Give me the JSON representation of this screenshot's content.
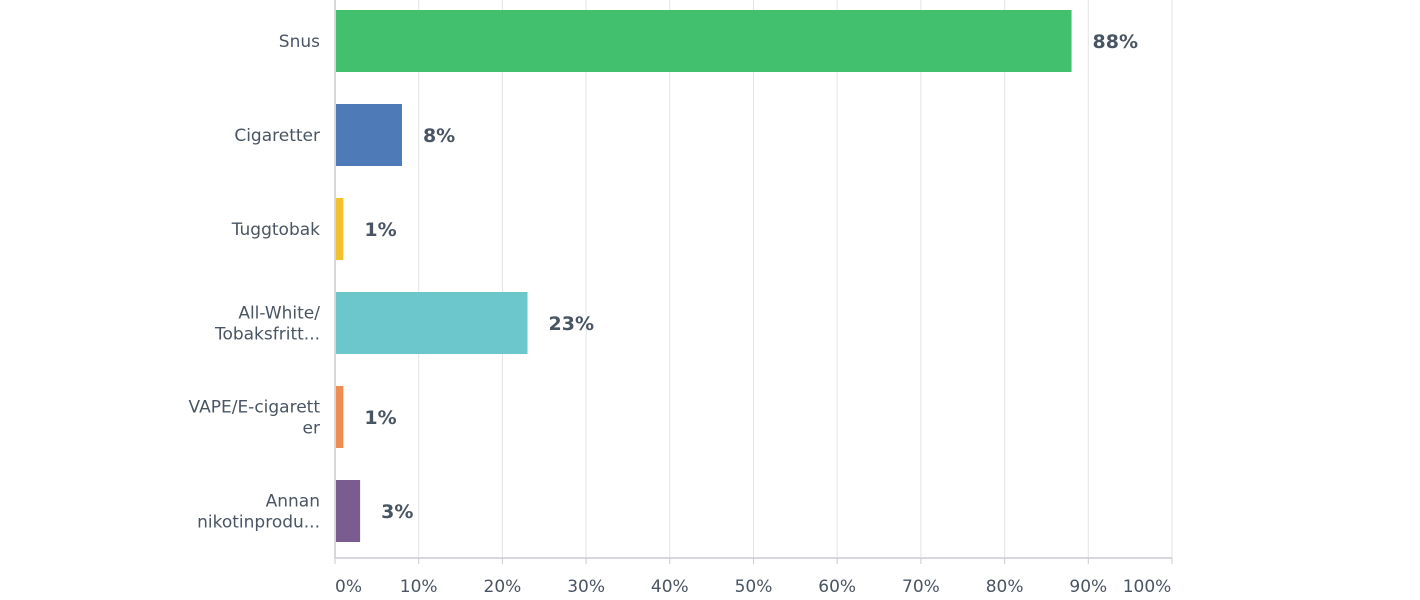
{
  "chart_data": {
    "type": "bar",
    "orientation": "horizontal",
    "categories": [
      {
        "lines": [
          "Snus"
        ]
      },
      {
        "lines": [
          "Cigaretter"
        ]
      },
      {
        "lines": [
          "Tuggtobak"
        ]
      },
      {
        "lines": [
          "All-White/",
          "Tobaksfritt..."
        ]
      },
      {
        "lines": [
          "VAPE/E-cigarett",
          "er"
        ]
      },
      {
        "lines": [
          "Annan",
          "nikotinprodu..."
        ]
      }
    ],
    "values": [
      88,
      8,
      1,
      23,
      1,
      3
    ],
    "data_labels": [
      "88%",
      "8%",
      "1%",
      "23%",
      "1%",
      "3%"
    ],
    "bar_colors": [
      "#43c06e",
      "#4f7ab8",
      "#f2c12e",
      "#6cc7cc",
      "#f08c4f",
      "#7a5c91"
    ],
    "xlim": [
      0,
      100
    ],
    "x_ticks": [
      0,
      10,
      20,
      30,
      40,
      50,
      60,
      70,
      80,
      90,
      100
    ],
    "x_tick_labels": [
      "0%",
      "10%",
      "20%",
      "30%",
      "40%",
      "50%",
      "60%",
      "70%",
      "80%",
      "90%",
      "100%"
    ],
    "grid": "vertical",
    "legend": "none"
  }
}
